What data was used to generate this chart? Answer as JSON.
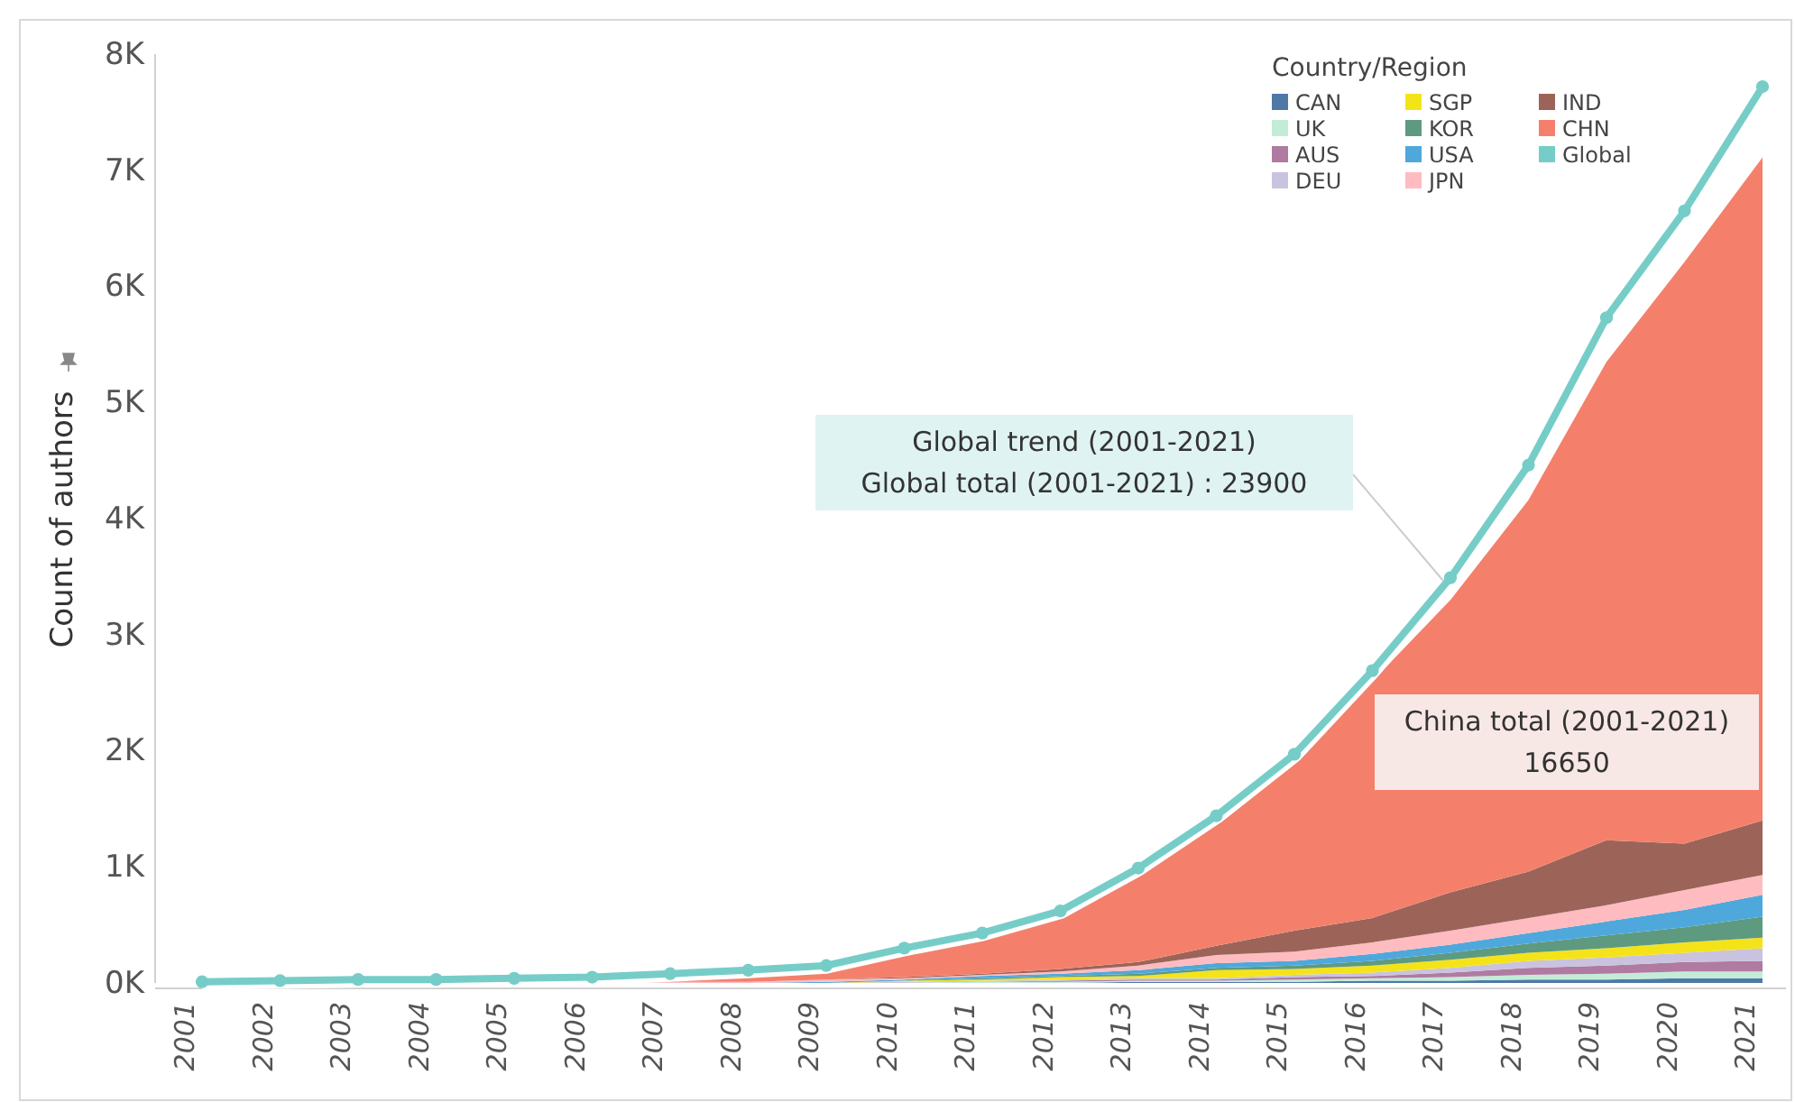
{
  "chart_data": {
    "type": "area",
    "stacked": true,
    "ylabel": "Count of authors",
    "legend_title": "Country/Region",
    "legend": "top right",
    "grid": false,
    "categories": [
      "2001",
      "2002",
      "2003",
      "2004",
      "2005",
      "2006",
      "2007",
      "2008",
      "2009",
      "2010",
      "2011",
      "2012",
      "2013",
      "2014",
      "2015",
      "2016",
      "2017",
      "2018",
      "2019",
      "2020",
      "2021"
    ],
    "ylim": [
      0,
      8000
    ],
    "yticks": [
      {
        "value": 0,
        "label": "0K"
      },
      {
        "value": 1000,
        "label": "1K"
      },
      {
        "value": 2000,
        "label": "2K"
      },
      {
        "value": 3000,
        "label": "3K"
      },
      {
        "value": 4000,
        "label": "4K"
      },
      {
        "value": 5000,
        "label": "5K"
      },
      {
        "value": 6000,
        "label": "6K"
      },
      {
        "value": 7000,
        "label": "7K"
      },
      {
        "value": 8000,
        "label": "8K"
      }
    ],
    "series": [
      {
        "name": "CAN",
        "color": "#4e79a7",
        "values": [
          0,
          0,
          0,
          0,
          0,
          0,
          0,
          0,
          0,
          0,
          0,
          0,
          10,
          10,
          10,
          20,
          20,
          30,
          30,
          40,
          40
        ]
      },
      {
        "name": "UK",
        "color": "#c2ecd8",
        "values": [
          0,
          0,
          0,
          0,
          0,
          0,
          0,
          0,
          0,
          0,
          10,
          10,
          10,
          10,
          20,
          20,
          30,
          40,
          50,
          60,
          60
        ]
      },
      {
        "name": "AUS",
        "color": "#b07aa1",
        "values": [
          0,
          0,
          0,
          0,
          0,
          0,
          0,
          0,
          0,
          0,
          0,
          10,
          10,
          10,
          20,
          20,
          40,
          60,
          70,
          80,
          90
        ]
      },
      {
        "name": "DEU",
        "color": "#c9c3e0",
        "values": [
          0,
          0,
          0,
          0,
          0,
          0,
          0,
          0,
          0,
          10,
          10,
          10,
          10,
          10,
          20,
          30,
          40,
          60,
          70,
          80,
          110
        ]
      },
      {
        "name": "SGP",
        "color": "#f5e31a",
        "values": [
          0,
          0,
          0,
          0,
          0,
          0,
          0,
          0,
          0,
          10,
          10,
          20,
          20,
          70,
          50,
          60,
          70,
          70,
          80,
          90,
          90
        ]
      },
      {
        "name": "KOR",
        "color": "#5e9a7f",
        "values": [
          0,
          0,
          0,
          0,
          0,
          0,
          0,
          0,
          0,
          0,
          10,
          10,
          20,
          20,
          30,
          40,
          60,
          80,
          110,
          130,
          180
        ]
      },
      {
        "name": "USA",
        "color": "#4fa8dc",
        "values": [
          0,
          0,
          0,
          0,
          0,
          0,
          0,
          0,
          10,
          10,
          20,
          20,
          30,
          40,
          40,
          60,
          70,
          90,
          120,
          150,
          190
        ]
      },
      {
        "name": "JPN",
        "color": "#ffbcc0",
        "values": [
          0,
          0,
          0,
          0,
          0,
          0,
          10,
          10,
          20,
          10,
          10,
          20,
          40,
          70,
          80,
          100,
          120,
          130,
          140,
          170,
          170
        ]
      },
      {
        "name": "IND",
        "color": "#9c6459",
        "values": [
          0,
          0,
          0,
          0,
          0,
          0,
          0,
          0,
          0,
          10,
          10,
          20,
          30,
          80,
          180,
          210,
          330,
          400,
          560,
          400,
          470
        ]
      },
      {
        "name": "CHN",
        "color": "#f4806c",
        "values": [
          10,
          20,
          30,
          30,
          40,
          50,
          70,
          90,
          120,
          230,
          320,
          460,
          790,
          1060,
          1460,
          2040,
          2520,
          3200,
          4120,
          5010,
          5710
        ]
      },
      {
        "name": "Global",
        "type": "line",
        "marker": "circle",
        "color": "#76cdc8",
        "values": [
          10,
          20,
          30,
          30,
          40,
          50,
          80,
          110,
          150,
          300,
          430,
          620,
          990,
          1440,
          1970,
          2690,
          3490,
          4460,
          5730,
          6650,
          7720
        ]
      }
    ],
    "annotations": [
      "Global trend (2001-2021)\nGlobal total (2001-2021) : 23900",
      "China total (2001-2021)\n16650"
    ]
  }
}
